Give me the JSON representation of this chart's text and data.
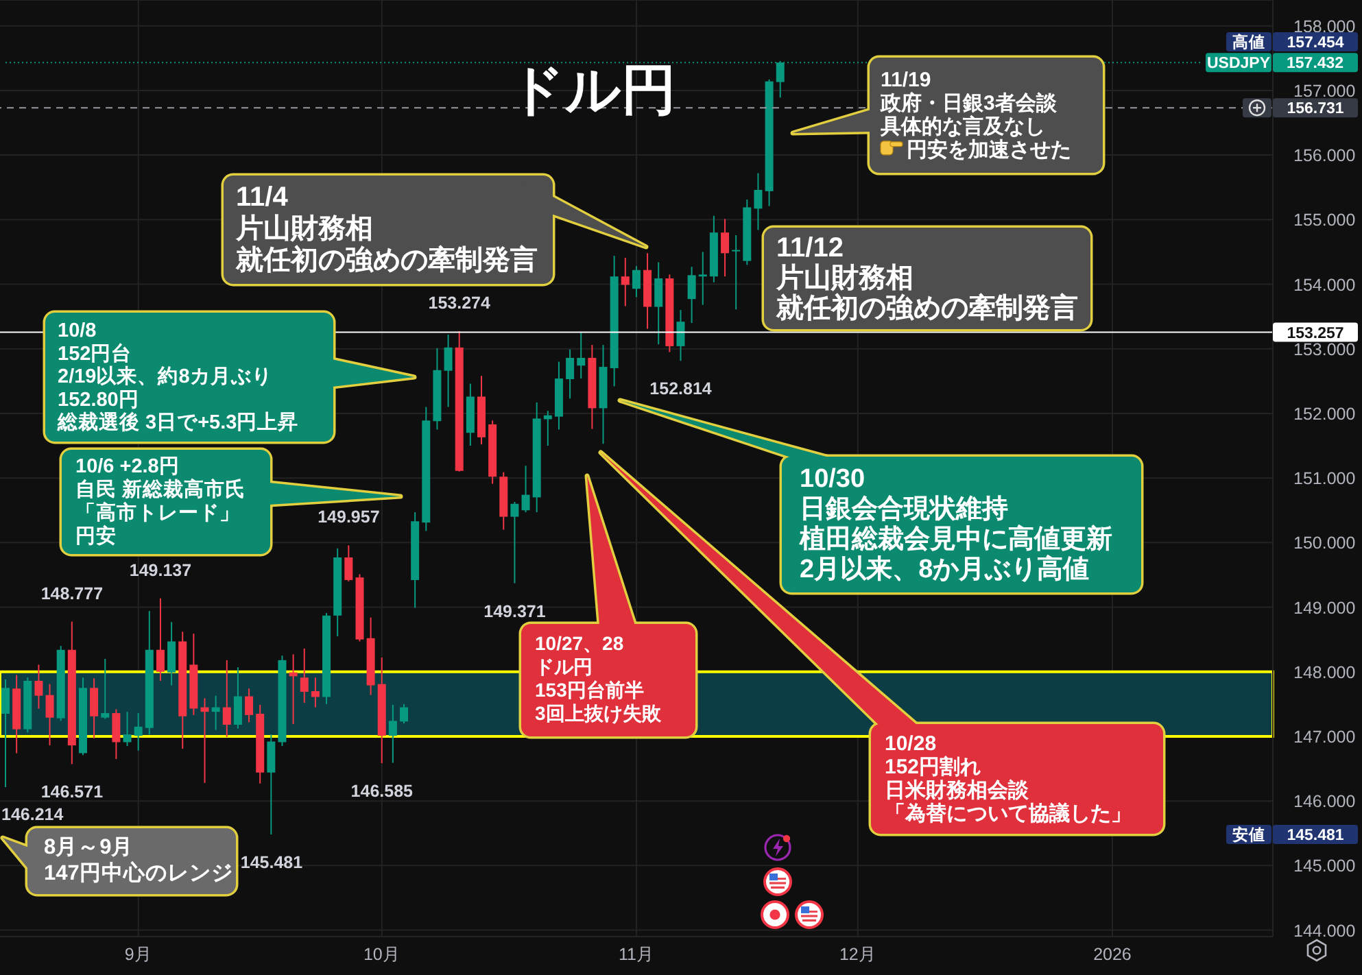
{
  "chart_data": {
    "type": "candlestick",
    "title": "ドル円",
    "categories": [
      null,
      null,
      null,
      null,
      null,
      null,
      null,
      null,
      null,
      null,
      null,
      null,
      "9月",
      null,
      null,
      null,
      null,
      null,
      null,
      null,
      null,
      null,
      null,
      null,
      null,
      null,
      null,
      null,
      null,
      null,
      null,
      null,
      null,
      null,
      "10月",
      null,
      null,
      null,
      null,
      null,
      null,
      null,
      null,
      null,
      null,
      null,
      null,
      null,
      null,
      null,
      null,
      null,
      null,
      null,
      null,
      null,
      null,
      "11月",
      null,
      null,
      null,
      null,
      null,
      null,
      null,
      null,
      null,
      null,
      null,
      null,
      null,
      null,
      null,
      null,
      null,
      null,
      null,
      "12月",
      null,
      null,
      null,
      null,
      null,
      null,
      null,
      null,
      null,
      null,
      null,
      null,
      null,
      null,
      null,
      null,
      null,
      null,
      null,
      null,
      null,
      null,
      "2026",
      null,
      null,
      null,
      null,
      null,
      null,
      null,
      null,
      null,
      null,
      null,
      null,
      null,
      null
    ],
    "ohlc": [
      [
        147.35,
        147.88,
        146.214,
        147.75
      ],
      [
        147.74,
        147.95,
        146.74,
        147.11
      ],
      [
        147.11,
        147.91,
        147.06,
        147.86
      ],
      [
        147.86,
        148.11,
        147.43,
        147.63
      ],
      [
        147.64,
        147.81,
        146.86,
        147.29
      ],
      [
        147.28,
        148.4,
        147.24,
        148.34
      ],
      [
        148.34,
        148.777,
        146.571,
        146.86
      ],
      [
        146.74,
        147.91,
        146.71,
        147.75
      ],
      [
        147.75,
        147.9,
        146.97,
        147.31
      ],
      [
        147.29,
        148.2,
        147.27,
        147.36
      ],
      [
        147.36,
        147.42,
        146.65,
        146.91
      ],
      [
        146.91,
        147.38,
        146.85,
        147.03
      ],
      [
        147.01,
        147.36,
        146.78,
        147.15
      ],
      [
        147.13,
        148.94,
        147.03,
        148.34
      ],
      [
        148.34,
        149.137,
        147.86,
        148.0
      ],
      [
        147.99,
        148.77,
        147.79,
        148.47
      ],
      [
        148.47,
        148.62,
        146.81,
        147.31
      ],
      [
        148.11,
        148.59,
        147.33,
        147.43
      ],
      [
        147.45,
        147.59,
        146.28,
        147.38
      ],
      [
        147.38,
        147.63,
        147.1,
        147.45
      ],
      [
        147.45,
        148.18,
        146.99,
        147.18
      ],
      [
        147.18,
        148.07,
        147.12,
        147.62
      ],
      [
        147.62,
        147.74,
        147.22,
        147.33
      ],
      [
        147.35,
        147.49,
        146.27,
        146.44
      ],
      [
        146.44,
        147.03,
        145.481,
        146.92
      ],
      [
        146.91,
        148.25,
        146.85,
        148.18
      ],
      [
        147.99,
        148.27,
        147.19,
        147.93
      ],
      [
        147.91,
        148.36,
        147.52,
        147.69
      ],
      [
        147.7,
        147.91,
        147.45,
        147.61
      ],
      [
        147.61,
        148.91,
        147.5,
        148.87
      ],
      [
        148.87,
        149.91,
        148.55,
        149.77
      ],
      [
        149.77,
        149.957,
        149.4,
        149.42
      ],
      [
        149.46,
        149.51,
        148.47,
        148.5
      ],
      [
        148.52,
        148.84,
        147.64,
        147.79
      ],
      [
        147.81,
        148.22,
        146.585,
        147.01
      ],
      [
        147.01,
        147.49,
        146.59,
        147.24
      ],
      [
        147.23,
        147.5,
        147.2,
        147.45
      ],
      [
        149.42,
        150.47,
        148.99,
        150.33
      ],
      [
        150.31,
        152.1,
        150.18,
        151.89
      ],
      [
        151.88,
        153.01,
        151.75,
        152.67
      ],
      [
        152.66,
        153.22,
        152.1,
        153.02
      ],
      [
        153.02,
        153.274,
        151.1,
        151.11
      ],
      [
        151.7,
        152.46,
        151.5,
        152.26
      ],
      [
        152.26,
        152.58,
        151.52,
        151.63
      ],
      [
        151.83,
        151.89,
        150.91,
        151.02
      ],
      [
        151.02,
        151.09,
        150.2,
        150.4
      ],
      [
        150.4,
        150.63,
        149.371,
        150.6
      ],
      [
        150.5,
        151.19,
        150.47,
        150.74
      ],
      [
        150.7,
        152.17,
        150.47,
        151.92
      ],
      [
        151.91,
        152.04,
        151.5,
        151.97
      ],
      [
        151.95,
        152.8,
        151.75,
        152.54
      ],
      [
        152.53,
        152.99,
        152.23,
        152.86
      ],
      [
        152.74,
        153.25,
        152.54,
        152.86
      ],
      [
        152.86,
        153.06,
        151.76,
        152.08
      ],
      [
        152.08,
        153.06,
        151.53,
        152.72
      ],
      [
        152.7,
        154.44,
        152.42,
        154.12
      ],
      [
        154.12,
        154.41,
        153.66,
        153.99
      ],
      [
        153.93,
        154.28,
        153.8,
        154.22
      ],
      [
        154.22,
        154.48,
        153.31,
        153.65
      ],
      [
        153.65,
        154.34,
        153.07,
        154.09
      ],
      [
        154.09,
        154.15,
        152.95,
        153.04
      ],
      [
        153.04,
        153.6,
        152.814,
        153.42
      ],
      [
        153.77,
        154.27,
        153.4,
        154.14
      ],
      [
        154.12,
        154.5,
        153.68,
        154.15
      ],
      [
        154.12,
        155.06,
        154.03,
        154.8
      ],
      [
        154.8,
        155.01,
        154.12,
        154.48
      ],
      [
        154.52,
        154.76,
        153.61,
        154.53
      ],
      [
        154.36,
        155.31,
        154.3,
        155.19
      ],
      [
        155.17,
        155.72,
        154.84,
        155.46
      ],
      [
        155.44,
        157.17,
        155.21,
        157.14
      ],
      [
        157.13,
        157.454,
        156.89,
        157.432
      ],
      null,
      null,
      null,
      null,
      null,
      null,
      null,
      null,
      null,
      null,
      null,
      null,
      null,
      null,
      null,
      null,
      null,
      null,
      null,
      null,
      null,
      null,
      null,
      null,
      null,
      null,
      null,
      null,
      null,
      null,
      null,
      null,
      null,
      null,
      null,
      null,
      null,
      null,
      null,
      null,
      null,
      null,
      null,
      null
    ],
    "colors": [
      "#089981",
      "#f23645",
      "#089981",
      "#f23645",
      "#f23645",
      "#089981",
      "#f23645",
      "#089981",
      "#f23645",
      "#089981",
      "#f23645",
      "#089981",
      "#089981",
      "#089981",
      "#f23645",
      "#089981",
      "#f23645",
      "#f23645",
      "#f23645",
      "#089981",
      "#f23645",
      "#089981",
      "#f23645",
      "#f23645",
      "#089981",
      "#089981",
      "#f23645",
      "#f23645",
      "#f23645",
      "#089981",
      "#089981",
      "#f23645",
      "#f23645",
      "#f23645",
      "#f23645",
      "#089981",
      "#089981",
      "#089981",
      "#089981",
      "#089981",
      "#089981",
      "#f23645",
      "#089981",
      "#f23645",
      "#f23645",
      "#f23645",
      "#089981",
      "#089981",
      "#089981",
      "#089981",
      "#089981",
      "#089981",
      "#089981",
      "#f23645",
      "#089981",
      "#089981",
      "#f23645",
      "#089981",
      "#f23645",
      "#089981",
      "#f23645",
      "#089981",
      "#089981",
      "#089981",
      "#089981",
      "#f23645",
      "#089981",
      "#089981",
      "#089981",
      "#089981",
      "#089981",
      null,
      null,
      null,
      null,
      null,
      null,
      null,
      null,
      null,
      null,
      null,
      null,
      null,
      null,
      null,
      null,
      null,
      null,
      null,
      null,
      null,
      null,
      null,
      null,
      null,
      null,
      null,
      null,
      null,
      null,
      null,
      null,
      null,
      null,
      null,
      null,
      null,
      null,
      null,
      null,
      null,
      null,
      null,
      null
    ],
    "ylim": [
      143.9,
      158.4
    ],
    "yticks": [
      {
        "value": 144,
        "label": "144.000"
      },
      {
        "value": 145,
        "label": "145.000"
      },
      {
        "value": 146,
        "label": "146.000"
      },
      {
        "value": 147,
        "label": "147.000"
      },
      {
        "value": 148,
        "label": "148.000"
      },
      {
        "value": 149,
        "label": "149.000"
      },
      {
        "value": 150,
        "label": "150.000"
      },
      {
        "value": 151,
        "label": "151.000"
      },
      {
        "value": 152,
        "label": "152.000"
      },
      {
        "value": 153,
        "label": "153.000"
      },
      {
        "value": 154,
        "label": "154.000"
      },
      {
        "value": 155,
        "label": "155.000"
      },
      {
        "value": 156,
        "label": "156.000"
      },
      {
        "value": 157,
        "label": "157.000"
      },
      {
        "value": 158,
        "label": "158.000"
      }
    ],
    "grid": true,
    "ref_lines": [
      {
        "axis": "y",
        "value": 157.432,
        "label": "USDJPY 157.432",
        "color": "#089981",
        "line_style": "dotted"
      },
      {
        "axis": "y",
        "value": 156.731,
        "label": "156.731",
        "color": "#9598a1",
        "line_style": "dashed"
      },
      {
        "axis": "y",
        "value": 153.257,
        "label": "153.257",
        "color": "#ffffff",
        "line_style": "solid"
      }
    ],
    "bands": [
      {
        "axis": "y",
        "from": 147,
        "to": 148,
        "color": "#0c3d45"
      }
    ],
    "annotations": [
      "11/19\n政府・日銀3者会談具体的な言及なし円安を加速させた",
      "11/4\n片山財務相就任初の強めの牽制発言",
      "11/12\n片山財務相就任初の強めの牽制発言",
      "10/8\n152円台\n2/19以来、約8カ月ぶり\n152.80円総裁選後 3日で+5.3円上昇",
      "10/6 +2.8円自民 新総裁高市氏「高市トレード」円安",
      "10/30\n日銀会合現状維持植田総裁会見中に高値更新\n2月以来、8か月ぶり高値",
      "10/27、28\nドル円\n153円台前半\n3回上抜け失敗",
      "10/28\n152円割れ日米財務相会談「為替について協議した」",
      "8月～9月\n147円中心のレンジ",
      "高値 157.454",
      "安値 145.481",
      "146.214",
      "145.481",
      {
        "text": "148.777",
        "y": 148.777
      },
      {
        "text": "146.571",
        "y": 146.571
      },
      {
        "text": "149.137",
        "y": 149.137
      },
      {
        "text": "149.957",
        "y": 149.957
      },
      {
        "text": "146.585",
        "y": 146.585
      },
      {
        "text": "153.274",
        "y": 153.274
      },
      {
        "text": "149.371",
        "y": 149.371
      },
      {
        "text": "152.814",
        "y": 152.814
      }
    ]
  }
}
